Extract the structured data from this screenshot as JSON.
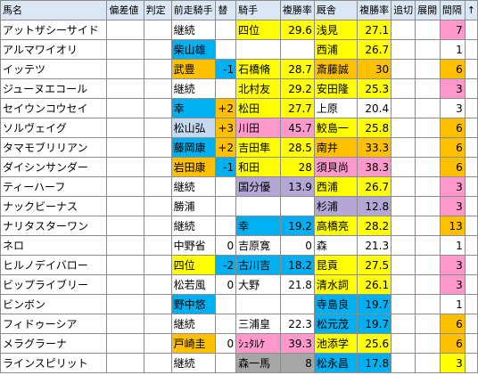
{
  "headers": [
    "馬名",
    "偏差値",
    "判定",
    "前走騎手",
    "替",
    "騎手",
    "複勝率",
    "厩舎",
    "複勝率",
    "追切",
    "展開",
    "間隔",
    "↑"
  ],
  "rows": [
    {
      "name": "アットザシーサイド",
      "prev_jockey": "継続",
      "change": "",
      "jockey": "四位",
      "jr": "29.6",
      "trainer": "浅見",
      "tr": "27.1",
      "interval": "7",
      "c": {
        "prev": "",
        "jockey": "y",
        "jr": "y",
        "trainer": "y",
        "tr": "y",
        "interval": "p"
      }
    },
    {
      "name": "アルマワイオリ",
      "prev_jockey": "柴山雄",
      "change": "",
      "jockey": "",
      "jr": "",
      "trainer": "西浦",
      "tr": "26.7",
      "interval": "1",
      "c": {
        "prev": "b",
        "jockey": "",
        "jr": "",
        "trainer": "y",
        "tr": "y",
        "interval": "w"
      }
    },
    {
      "name": "イッテツ",
      "prev_jockey": "武豊",
      "change": "-1",
      "jockey": "石橋脩",
      "jr": "28.7",
      "trainer": "斎藤誠",
      "tr": "30",
      "interval": "6",
      "c": {
        "prev": "o",
        "change": "b",
        "jockey": "y",
        "jr": "y",
        "trainer": "o",
        "tr": "o",
        "interval": "o"
      }
    },
    {
      "name": "ジューヌエコール",
      "prev_jockey": "継続",
      "change": "",
      "jockey": "北村友",
      "jr": "29.2",
      "trainer": "安田隆",
      "tr": "25.3",
      "interval": "3",
      "c": {
        "prev": "",
        "jockey": "y",
        "jr": "y",
        "trainer": "y",
        "tr": "y",
        "interval": "p"
      }
    },
    {
      "name": "セイウンコウセイ",
      "prev_jockey": "幸",
      "change": "+2",
      "jockey": "松田",
      "jr": "27.7",
      "trainer": "上原",
      "tr": "20.4",
      "interval": "3",
      "c": {
        "prev": "b",
        "change": "o",
        "jockey": "y",
        "jr": "y",
        "trainer": "",
        "tr": "",
        "interval": "w"
      }
    },
    {
      "name": "ソルヴェイグ",
      "prev_jockey": "松山弘",
      "change": "+3",
      "jockey": "川田",
      "jr": "45.7",
      "trainer": "鮫島一",
      "tr": "25.8",
      "interval": "6",
      "c": {
        "prev": "lb",
        "change": "o",
        "jockey": "p",
        "jr": "p",
        "trainer": "y",
        "tr": "y",
        "interval": "o"
      }
    },
    {
      "name": "タマモブリリアン",
      "prev_jockey": "藤岡康",
      "change": "+2",
      "jockey": "吉田隼",
      "jr": "28.5",
      "trainer": "南井",
      "tr": "33.3",
      "interval": "6",
      "c": {
        "prev": "b",
        "change": "o",
        "jockey": "y",
        "jr": "y",
        "trainer": "o",
        "tr": "o",
        "interval": "o"
      }
    },
    {
      "name": "ダイシンサンダー",
      "prev_jockey": "岩田康",
      "change": "-1",
      "jockey": "和田",
      "jr": "28",
      "trainer": "須貝尚",
      "tr": "38.3",
      "interval": "6",
      "c": {
        "prev": "o",
        "change": "b",
        "jockey": "y",
        "jr": "y",
        "trainer": "p",
        "tr": "p",
        "interval": "o"
      }
    },
    {
      "name": "ティーハーフ",
      "prev_jockey": "継続",
      "change": "",
      "jockey": "国分優",
      "jr": "13.9",
      "trainer": "西浦",
      "tr": "26.7",
      "interval": "3",
      "c": {
        "prev": "",
        "jockey": "pu",
        "jr": "pu",
        "trainer": "y",
        "tr": "y",
        "interval": "p"
      }
    },
    {
      "name": "ナックビーナス",
      "prev_jockey": "勝浦",
      "change": "",
      "jockey": "",
      "jr": "",
      "trainer": "杉浦",
      "tr": "12.8",
      "interval": "3",
      "c": {
        "prev": "",
        "jockey": "",
        "jr": "",
        "trainer": "pu",
        "tr": "pu",
        "interval": "p"
      }
    },
    {
      "name": "ナリタスターワン",
      "prev_jockey": "継続",
      "change": "",
      "jockey": "幸",
      "jr": "19.2",
      "trainer": "高橋亮",
      "tr": "28.2",
      "interval": "13",
      "c": {
        "prev": "",
        "jockey": "b",
        "jr": "b",
        "trainer": "y",
        "tr": "y",
        "interval": "o"
      }
    },
    {
      "name": "ネロ",
      "prev_jockey": "中野省",
      "change": "0",
      "jockey": "吉原寛",
      "jr": "0",
      "trainer": "森",
      "tr": "21.3",
      "interval": "1",
      "c": {
        "prev": "",
        "change": "",
        "jockey": "",
        "jr": "",
        "trainer": "",
        "tr": "",
        "interval": "w"
      }
    },
    {
      "name": "ヒルノデイバロー",
      "prev_jockey": "四位",
      "change": "-2",
      "jockey": "古川吉",
      "jr": "18.2",
      "trainer": "昆貢",
      "tr": "27.5",
      "interval": "3",
      "c": {
        "prev": "y",
        "change": "b",
        "jockey": "b",
        "jr": "b",
        "trainer": "y",
        "tr": "y",
        "interval": "p"
      }
    },
    {
      "name": "ビップライブリー",
      "prev_jockey": "松若風",
      "change": "0",
      "jockey": "大野",
      "jr": "21.8",
      "trainer": "清水詞",
      "tr": "26.1",
      "interval": "3",
      "c": {
        "prev": "",
        "change": "",
        "jockey": "",
        "jr": "",
        "trainer": "y",
        "tr": "y",
        "interval": "p"
      }
    },
    {
      "name": "ビンボン",
      "prev_jockey": "野中悠",
      "change": "",
      "jockey": "",
      "jr": "",
      "trainer": "寺島良",
      "tr": "19.7",
      "interval": "1",
      "c": {
        "prev": "b",
        "jockey": "",
        "jr": "",
        "trainer": "b",
        "tr": "b",
        "interval": "w"
      }
    },
    {
      "name": "フィドゥーシア",
      "prev_jockey": "継続",
      "change": "",
      "jockey": "三浦皇",
      "jr": "22.3",
      "trainer": "松元茂",
      "tr": "19.7",
      "interval": "6",
      "c": {
        "prev": "",
        "jockey": "",
        "jr": "",
        "trainer": "b",
        "tr": "b",
        "interval": "o"
      }
    },
    {
      "name": "メラグラーナ",
      "prev_jockey": "戸崎圭",
      "change": "0",
      "jockey": "ｼｭﾀﾙｹ",
      "jr": "39.3",
      "trainer": "池添学",
      "tr": "25.6",
      "interval": "6",
      "c": {
        "prev": "o",
        "change": "",
        "jockey": "p",
        "jr": "p",
        "trainer": "y",
        "tr": "y",
        "interval": "o"
      }
    },
    {
      "name": "ラインスピリット",
      "prev_jockey": "継続",
      "change": "",
      "jockey": "森一馬",
      "jr": "8",
      "trainer": "松永昌",
      "tr": "17.8",
      "interval": "3",
      "c": {
        "prev": "",
        "jockey": "g",
        "jr": "g",
        "trainer": "b",
        "tr": "b",
        "interval": "y"
      }
    }
  ],
  "sort_icon": "arrow-up-icon"
}
